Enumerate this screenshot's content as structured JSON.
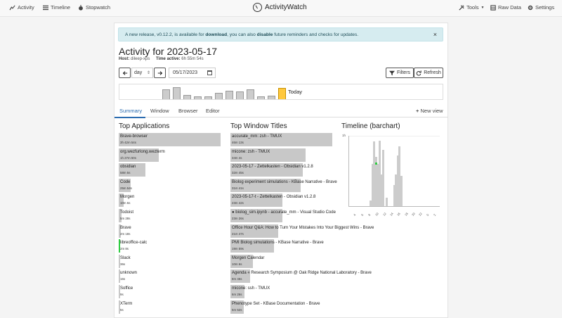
{
  "nav": {
    "activity": "Activity",
    "timeline": "Timeline",
    "stopwatch": "Stopwatch",
    "brand": "ActivityWatch",
    "tools": "Tools",
    "raw_data": "Raw Data",
    "settings": "Settings"
  },
  "alert": {
    "part1": "A new release, v0.12.2, is available for ",
    "link1": "download",
    "part2": ", you can also ",
    "link2": "disable",
    "part3": " future reminders and checks for updates.",
    "close": "×"
  },
  "page": {
    "title": "Activity for 2023-05-17",
    "host_label": "Host:",
    "host_value": "dileep-xps",
    "time_label": "Time active:",
    "time_value": "6h 55m 54s"
  },
  "controls": {
    "period": "day",
    "date": "05/17/2023",
    "filters": "Filters",
    "refresh": "Refresh"
  },
  "strip": {
    "today_label": "Today",
    "levels": [
      0.7,
      0.85,
      0.32,
      0.22,
      0.18,
      0.45,
      0.58,
      0.55,
      0.7,
      0.2,
      0.25,
      0.8
    ]
  },
  "tabs": [
    "Summary",
    "Window",
    "Browser",
    "Editor"
  ],
  "new_view": "New view",
  "sections": {
    "apps": "Top Applications",
    "windows": "Top Window Titles",
    "timeline": "Timeline (barchart)"
  },
  "apps": [
    {
      "name": "Brave-browser",
      "time": "3h 42m 54s",
      "share": 1.0,
      "color": "#c8c8c8"
    },
    {
      "name": "org.wezfurlong.wezterm",
      "time": "1h 27m 50s",
      "share": 0.39,
      "color": "#c8c8c8"
    },
    {
      "name": "obsidian",
      "time": "58m 5s",
      "share": 0.26,
      "color": "#c8c8c8"
    },
    {
      "name": "Code",
      "time": "25m 54s",
      "share": 0.12,
      "color": "#c8c8c8"
    },
    {
      "name": "Morgen",
      "time": "10m 6s",
      "share": 0.05,
      "color": "#c8c8c8"
    },
    {
      "name": "Todoist",
      "time": "5m 28s",
      "share": 0.03,
      "color": "#c8c8c8"
    },
    {
      "name": "Brave",
      "time": "2m 18s",
      "share": 0.02,
      "color": "#c8c8c8"
    },
    {
      "name": "libreoffice-calc",
      "time": "2m 8s",
      "share": 0.01,
      "color": "#2ecc40"
    },
    {
      "name": "Slack",
      "time": "36s",
      "share": 0.0,
      "color": "#c8c8c8"
    },
    {
      "name": "unknown",
      "time": "16s",
      "share": 0.0,
      "color": "#c8c8c8"
    },
    {
      "name": "Soffice",
      "time": "9s",
      "share": 0.0,
      "color": "#c8c8c8"
    },
    {
      "name": "XTerm",
      "time": "5s",
      "share": 0.0,
      "color": "#c8c8c8"
    }
  ],
  "windows": [
    {
      "name": "accurate_mm: zsh - TMUX",
      "time": "46m 13s",
      "share": 1.0
    },
    {
      "name": "micone: zsh - TMUX",
      "time": "34m 4s",
      "share": 0.74
    },
    {
      "name": "2023-05-17 - Zettelkasten - Obsidian v1.2.8",
      "time": "32m 45s",
      "share": 0.71
    },
    {
      "name": "Biolog experiment simulations - KBase Narrative - Brave",
      "time": "31m 41s",
      "share": 0.69
    },
    {
      "name": "2023-05-17-t - Zettelkasten - Obsidian v1.2.8",
      "time": "23m 42s",
      "share": 0.51
    },
    {
      "name": "● biolog_sim.ipynb - accurate_mm - Visual Studio Code",
      "time": "23m 26s",
      "share": 0.51
    },
    {
      "name": "Office Hour Q&A: How to Turn Your Mistakes Into Your Biggest Wins - Brave",
      "time": "21m 47s",
      "share": 0.47
    },
    {
      "name": "PMI Biolog simulations - KBase Narrative - Brave",
      "time": "19m 59s",
      "share": 0.43
    },
    {
      "name": "Morgen Calendar",
      "time": "10m 6s",
      "share": 0.22
    },
    {
      "name": "Agenda « Research Symposium @ Oak Ridge National Laboratory - Brave",
      "time": "8m 46s",
      "share": 0.19
    },
    {
      "name": "micone: ssh - TMUX",
      "time": "6m 26s",
      "share": 0.14
    },
    {
      "name": "Phenotype Set - KBase Documentation - Brave",
      "time": "5m 52s",
      "share": 0.13
    }
  ],
  "chart_data": {
    "type": "bar",
    "title": "Timeline (barchart)",
    "y_tick_labels": [
      "1h"
    ],
    "x_tick_labels": [
      "4",
      "6",
      "8",
      "10",
      "12",
      "14",
      "16",
      "18",
      "20",
      "22",
      "0",
      "2"
    ],
    "ylim": [
      0,
      1
    ],
    "bars": [
      {
        "x": 8.5,
        "value": 0.08,
        "color": "#cccccc"
      },
      {
        "x": 9.0,
        "value": 0.6,
        "color": "#cccccc"
      },
      {
        "x": 9.5,
        "value": 0.92,
        "color": "#cccccc"
      },
      {
        "x": 10.0,
        "value": 0.7,
        "color": "#cccccc"
      },
      {
        "x": 10.5,
        "value": 0.6,
        "color": "#cccccc"
      },
      {
        "x": 11.0,
        "value": 0.93,
        "color": "#cccccc"
      },
      {
        "x": 11.5,
        "value": 0.45,
        "color": "#cccccc"
      },
      {
        "x": 12.0,
        "value": 0.8,
        "color": "#cccccc"
      },
      {
        "x": 13.0,
        "value": 0.12,
        "color": "#cccccc"
      },
      {
        "x": 15.0,
        "value": 0.3,
        "color": "#cccccc"
      },
      {
        "x": 15.5,
        "value": 0.45,
        "color": "#cccccc"
      },
      {
        "x": 16.0,
        "value": 0.72,
        "color": "#cccccc"
      },
      {
        "x": 16.5,
        "value": 0.85,
        "color": "#cccccc"
      },
      {
        "x": 17.0,
        "value": 0.43,
        "color": "#cccccc"
      }
    ],
    "highlight": {
      "x": 10.0,
      "value": 0.62,
      "color": "#2ecc40"
    }
  }
}
